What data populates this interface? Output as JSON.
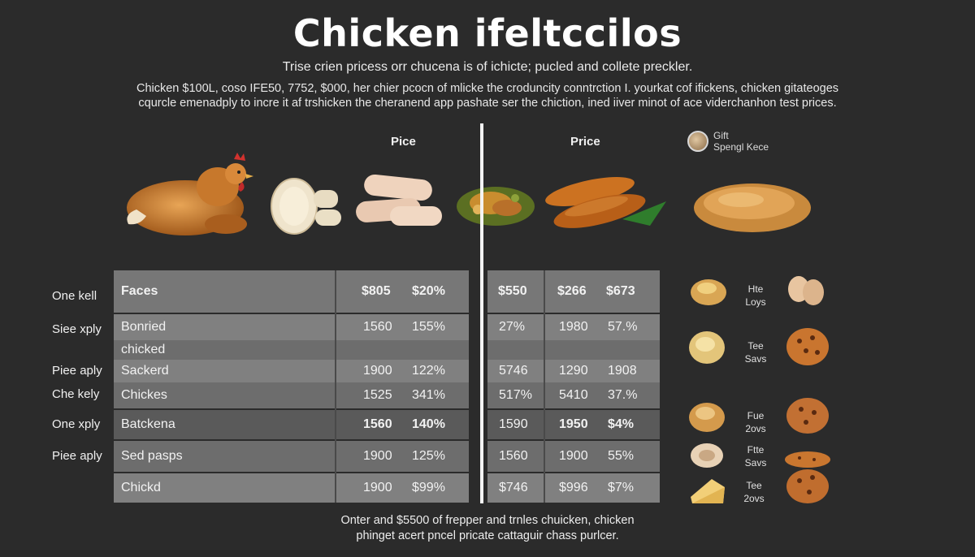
{
  "header": {
    "title": "Chicken ifeltccilos",
    "subtitle": "Trise crien pricess orr chucena is of ichicte; pucled and collete preckler.",
    "intro_line1": "Chicken $100L, coso IFE50, 7752, $000, her chier pcocn of mlicke the croduncity conntrction I. yourkat cof ifickens, chicken gitateoges",
    "intro_line2": "cqurcle emenadply to incre it af trshicken the cheranend app pashate ser the chiction, ined iiver minot of ace viderchanhon test prices."
  },
  "columns": {
    "left_price": "Pice",
    "right_price": "Price"
  },
  "gift": {
    "line1": "Gift",
    "line2": "Spengl Kece"
  },
  "side_labels": [
    "One kell",
    "Siee xply",
    "Piee aply",
    "Che kely",
    "One xply",
    "Piee aply"
  ],
  "left_table": {
    "header": {
      "name": "Faces",
      "v1": "$805",
      "v2": "$20%"
    },
    "rows": [
      {
        "name": "Bonried",
        "v1": "1560",
        "v2": "155%"
      },
      {
        "name": "chicked",
        "v1": "",
        "v2": ""
      },
      {
        "name": "Sackerd",
        "v1": "1900",
        "v2": "122%"
      },
      {
        "name": "Chickes",
        "v1": "1525",
        "v2": "341%"
      },
      {
        "name": "Batckena",
        "v1": "1560",
        "v2": "140%"
      },
      {
        "name": "Sed pasps",
        "v1": "1900",
        "v2": "125%"
      },
      {
        "name": "Chickd",
        "v1": "1900",
        "v2": "$99%"
      }
    ]
  },
  "right_table": {
    "header": {
      "a": "$550",
      "b": "$266",
      "c": "$673"
    },
    "rows": [
      {
        "a": "27%",
        "b": "1980",
        "c": "57.%"
      },
      {
        "a": "",
        "b": "",
        "c": ""
      },
      {
        "a": "5746",
        "b": "1290",
        "c": "1908"
      },
      {
        "a": "517%",
        "b": "5410",
        "c": "37.%"
      },
      {
        "a": "1590",
        "b": "1950",
        "c": "$4%"
      },
      {
        "a": "1560",
        "b": "1900",
        "c": "55%"
      },
      {
        "a": "$746",
        "b": "$996",
        "c": "$7%"
      }
    ]
  },
  "legend": [
    {
      "l1": "Hte",
      "l2": "Loys",
      "icon_left": "bread-bun-icon",
      "icon_right": "eggs-icon"
    },
    {
      "l1": "Tee",
      "l2": "Savs",
      "icon_left": "bread-bun-icon",
      "icon_right": "cookie-icon"
    },
    {
      "l1": "Fue",
      "l2": "2ovs",
      "icon_left": "bread-bun-icon",
      "icon_right": "cookie-icon"
    },
    {
      "l1": "Ftte",
      "l2": "Savs",
      "icon_left": "bread-bun-icon",
      "icon_right": "cookie-icon"
    },
    {
      "l1": "Tee",
      "l2": "2ovs",
      "icon_left": "cheese-icon",
      "icon_right": "cookie-icon"
    }
  ],
  "footer": {
    "line1": "Onter and $5500 of frepper and trnles chuicken, chicken",
    "line2": "phinget acert pncel pricate cattaguir chass purlcer."
  }
}
